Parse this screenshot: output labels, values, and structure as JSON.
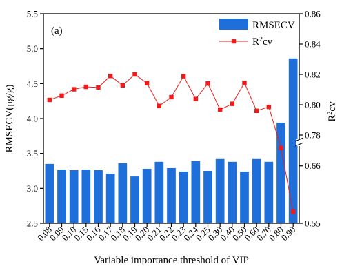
{
  "chart_data": {
    "type": "bar",
    "panel_label": "(a)",
    "categories": [
      "0.08",
      "0.09",
      "0.10",
      "0.15",
      "0.16",
      "0.17",
      "0.18",
      "0.19",
      "0.20",
      "0.21",
      "0.22",
      "0.23",
      "0.24",
      "0.25",
      "0.30",
      "0.40",
      "0.50",
      "0.60",
      "0.70",
      "0.80",
      "0.90"
    ],
    "xlabel": "Variable importance threshold of VIP",
    "left_axis": {
      "label_main": "RMSECV",
      "label_unit": "(μg/g)",
      "ylim": [
        2.5,
        5.5
      ],
      "ticks": [
        "2.5",
        "3.0",
        "3.5",
        "4.0",
        "4.5",
        "5.0",
        "5.5"
      ]
    },
    "right_axis": {
      "label_base": "R",
      "label_sup": "2",
      "label_sub": "cv",
      "upper_segment": {
        "range": [
          0.78,
          0.86
        ],
        "ticks": [
          "0.78",
          "0.80",
          "0.82",
          "0.84",
          "0.86"
        ]
      },
      "lower_segment": {
        "range": [
          0.55,
          0.69
        ],
        "ticks": [
          "0.55",
          "0.66"
        ]
      }
    },
    "series": [
      {
        "name": "RMSECV",
        "kind": "bar",
        "axis": "left",
        "color": "#1f6fdb",
        "values": [
          3.35,
          3.27,
          3.26,
          3.27,
          3.26,
          3.21,
          3.36,
          3.17,
          3.28,
          3.38,
          3.29,
          3.24,
          3.39,
          3.25,
          3.42,
          3.38,
          3.24,
          3.42,
          3.38,
          3.94,
          4.86
        ]
      },
      {
        "name_base": "R",
        "name_sup": "2",
        "name_sub": "cv",
        "kind": "line",
        "axis": "right",
        "color": "#ee1b1b",
        "values": [
          0.8032,
          0.806,
          0.8102,
          0.8118,
          0.8114,
          0.819,
          0.8128,
          0.82,
          0.8142,
          0.7992,
          0.805,
          0.8188,
          0.8038,
          0.814,
          0.7968,
          0.8006,
          0.8144,
          0.796,
          0.7986,
          0.704,
          0.572
        ]
      }
    ],
    "legend_position": "top-right"
  }
}
